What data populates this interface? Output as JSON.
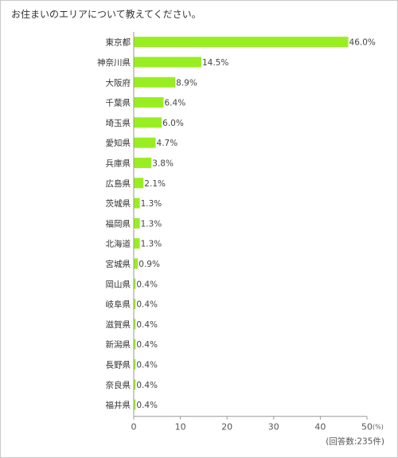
{
  "header": {
    "title": "お住まいのエリアについて教えてください。"
  },
  "chart_data": {
    "type": "bar",
    "orientation": "horizontal",
    "title": "お住まいのエリアについて教えてください。",
    "categories": [
      "東京都",
      "神奈川県",
      "大阪府",
      "千葉県",
      "埼玉県",
      "愛知県",
      "兵庫県",
      "広島県",
      "茨城県",
      "福岡県",
      "北海道",
      "宮城県",
      "岡山県",
      "岐阜県",
      "滋賀県",
      "新潟県",
      "長野県",
      "奈良県",
      "福井県"
    ],
    "values": [
      46.0,
      14.5,
      8.9,
      6.4,
      6.0,
      4.7,
      3.8,
      2.1,
      1.3,
      1.3,
      1.3,
      0.9,
      0.4,
      0.4,
      0.4,
      0.4,
      0.4,
      0.4,
      0.4
    ],
    "value_labels": [
      "46.0%",
      "14.5%",
      "8.9%",
      "6.4%",
      "6.0%",
      "4.7%",
      "3.8%",
      "2.1%",
      "1.3%",
      "1.3%",
      "1.3%",
      "0.9%",
      "0.4%",
      "0.4%",
      "0.4%",
      "0.4%",
      "0.4%",
      "0.4%",
      "0.4%"
    ],
    "xlim": [
      0,
      50
    ],
    "xticks": [
      "0",
      "10",
      "20",
      "30",
      "40",
      "50"
    ],
    "unit_label": "(%)",
    "note": "(回答数:235件)",
    "bar_color": "#99ee22",
    "grid": false
  }
}
